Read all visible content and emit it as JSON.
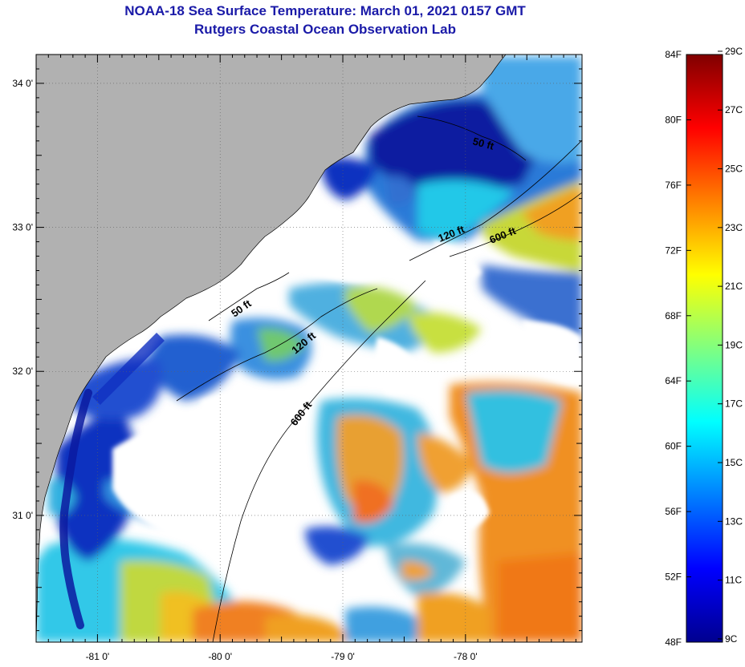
{
  "title": {
    "line1": "NOAA-18 Sea Surface Temperature:  March 01, 2021 0157 GMT",
    "line2": "Rutgers Coastal Ocean Observation Lab"
  },
  "axes": {
    "lon_ticks": [
      "-81 0'",
      "-80 0'",
      "-79 0'",
      "-78 0'"
    ],
    "lon_values": [
      -81,
      -80,
      -79,
      -78
    ],
    "lat_ticks": [
      "34 0'",
      "33 0'",
      "32 0'",
      "31 0'"
    ],
    "lat_values": [
      34,
      33,
      32,
      31
    ],
    "lon_range": [
      -81.5,
      -77.05
    ],
    "lat_range": [
      30.12,
      34.2
    ]
  },
  "contours": [
    "50 ft",
    "120 ft",
    "600 ft",
    "50 ft",
    "120 ft",
    "600 ft"
  ],
  "colorbar": {
    "fahrenheit": [
      "84F",
      "80F",
      "76F",
      "72F",
      "68F",
      "64F",
      "60F",
      "56F",
      "52F",
      "48F"
    ],
    "celsius": [
      "29C",
      "27C",
      "25C",
      "23C",
      "21C",
      "19C",
      "17C",
      "15C",
      "13C",
      "11C",
      "9C"
    ],
    "f_range": [
      48,
      84
    ],
    "stops": [
      "#00008f",
      "#0000ff",
      "#0080ff",
      "#00ffff",
      "#80ff80",
      "#ffff00",
      "#ff8000",
      "#ff0000",
      "#800000"
    ]
  },
  "colors": {
    "land": "#b1b1b1",
    "cloud": "#ffffff",
    "cold": "#0a1aa0",
    "title": "#1a1aa8"
  }
}
